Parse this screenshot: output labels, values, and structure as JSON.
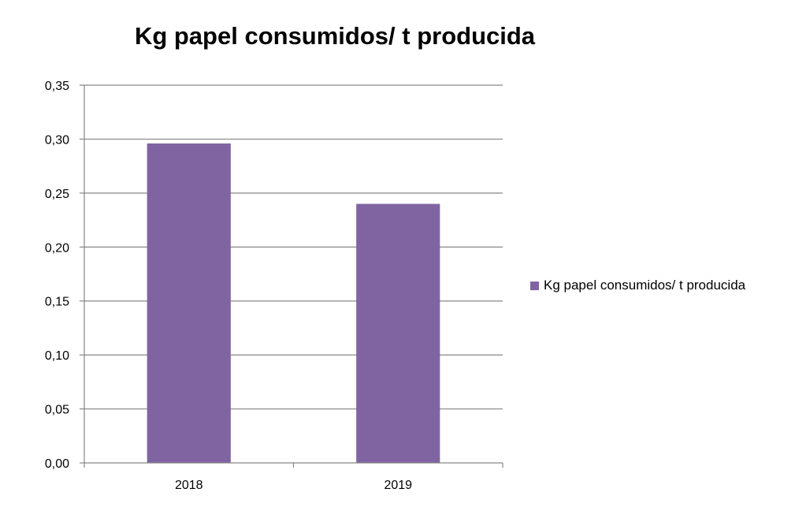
{
  "chart_data": {
    "type": "bar",
    "title": "Kg papel consumidos/ t producida",
    "categories": [
      "2018",
      "2019"
    ],
    "series": [
      {
        "name": "Kg papel consumidos/ t producida",
        "values": [
          0.296,
          0.24
        ]
      }
    ],
    "ylim": [
      0,
      0.35
    ],
    "yticks": [
      "0,00",
      "0,05",
      "0,10",
      "0,15",
      "0,20",
      "0,25",
      "0,30",
      "0,35"
    ],
    "grid": true,
    "legend": "right",
    "colors": {
      "bar": "#8064A2",
      "grid": "#868686",
      "axis": "#868686"
    }
  }
}
